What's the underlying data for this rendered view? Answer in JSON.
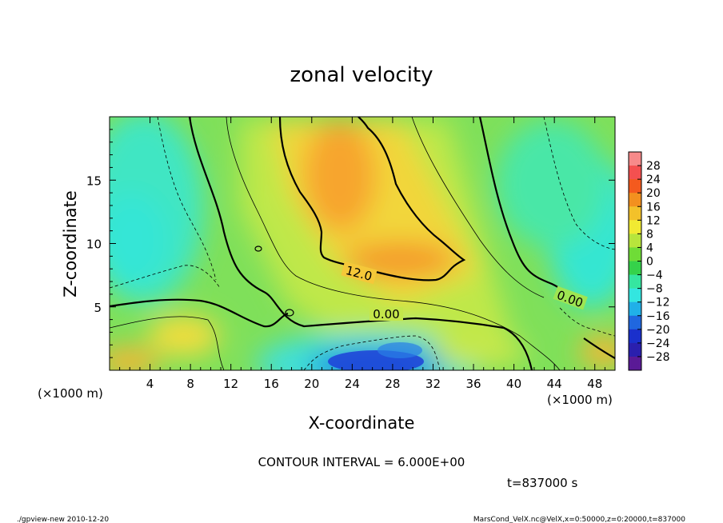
{
  "chart_data": {
    "type": "heatmap",
    "title": "zonal velocity",
    "xlabel": "X-coordinate",
    "ylabel": "Z-coordinate",
    "x_unit": "(×1000 m)",
    "xlim": [
      0,
      50
    ],
    "ylim": [
      0,
      20
    ],
    "x_ticks": [
      "4",
      "8",
      "12",
      "16",
      "20",
      "24",
      "28",
      "32",
      "36",
      "40",
      "44",
      "48"
    ],
    "x_tick_values": [
      4,
      8,
      12,
      16,
      20,
      24,
      28,
      32,
      36,
      40,
      44,
      48
    ],
    "y_ticks": [
      "5",
      "10",
      "15"
    ],
    "y_tick_values": [
      5,
      10,
      15
    ],
    "colorbar": {
      "labels": [
        "28",
        "24",
        "20",
        "16",
        "12",
        "8",
        "4",
        "0",
        "−4",
        "−8",
        "−12",
        "−16",
        "−20",
        "−24",
        "−28"
      ],
      "values": [
        28,
        24,
        20,
        16,
        12,
        8,
        4,
        0,
        -4,
        -8,
        -12,
        -16,
        -20,
        -24,
        -28
      ]
    },
    "contour_labels": [
      "12.0",
      "0.00",
      "0.00"
    ],
    "contour_interval_text": "CONTOUR INTERVAL = 6.000E+00",
    "time_text": "t=837000 s",
    "grid": false
  },
  "footer": {
    "left": "./gpview-new  2010-12-20",
    "right": "MarsCond_VelX.nc@VelX,x=0:50000,z=0:20000,t=837000"
  }
}
